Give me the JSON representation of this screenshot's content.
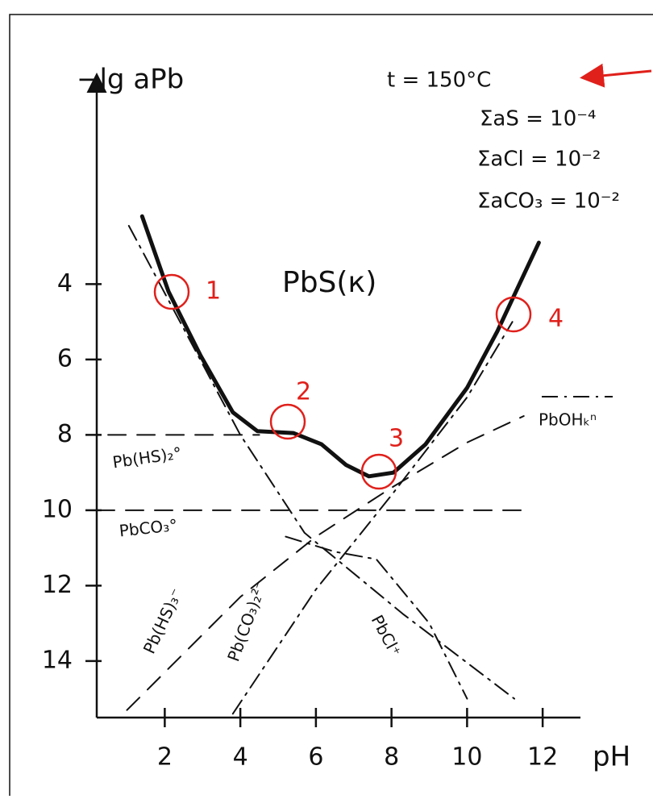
{
  "chart_data": {
    "type": "line",
    "y_label": "−lg aPb",
    "x_label": "pH",
    "region_label": "PbS(к)",
    "conditions": [
      "t = 150°C",
      "ΣaS = 10⁻⁴",
      "ΣaCl = 10⁻²",
      "ΣaCO₃ = 10⁻²"
    ],
    "markers": [
      "1",
      "2",
      "3",
      "4"
    ],
    "marker_color": "#e0201b",
    "xlim": [
      0.2,
      13
    ],
    "ylim": [
      -1.4,
      15.5
    ],
    "y_inverted": true,
    "xticks": [
      2,
      4,
      6,
      8,
      10,
      12
    ],
    "yticks": [
      4,
      6,
      8,
      10,
      12,
      14
    ],
    "grid": false,
    "series": [
      {
        "name": null,
        "color": "#111111",
        "style": "solid",
        "x": [
          1.4,
          2.1,
          2.95,
          3.8,
          4.45,
          5.4,
          6.15,
          6.8,
          7.4,
          8.05,
          8.9,
          10.0,
          10.8,
          11.9
        ],
        "values": [
          2.2,
          4.2,
          5.9,
          7.4,
          7.9,
          7.95,
          8.25,
          8.8,
          9.1,
          9.0,
          8.25,
          6.75,
          5.25,
          2.9
        ]
      },
      {
        "name": "Pb(HS)₂°",
        "color": "#111111",
        "style": "dashed",
        "x": [
          0.5,
          4.5
        ],
        "values": [
          8,
          8
        ]
      },
      {
        "name": "PbCO₃°",
        "color": "#111111",
        "style": "dashed",
        "x": [
          0.2,
          11.7
        ],
        "values": [
          10,
          10
        ]
      },
      {
        "name": "PbCl⁺",
        "color": "#111111",
        "style": "dashdot",
        "x": [
          1.05,
          4.0,
          5.7,
          8.3,
          11.25
        ],
        "values": [
          2.45,
          8.0,
          10.6,
          12.75,
          15.0
        ]
      },
      {
        "name": "Pb(HS)₃⁻",
        "color": "#111111",
        "style": "dashed",
        "x": [
          1.0,
          4.0,
          6.0,
          8.0,
          10.0,
          11.5
        ],
        "values": [
          15.3,
          12.3,
          10.7,
          9.4,
          8.2,
          7.5
        ]
      },
      {
        "name": "Pb(CO₃)₂²⁻",
        "color": "#111111",
        "style": "dashdot",
        "x": [
          3.8,
          6.0,
          8.0,
          10.0,
          11.2
        ],
        "values": [
          15.4,
          12.1,
          9.6,
          7.0,
          5.0
        ]
      },
      {
        "name": "PbOHₖⁿ",
        "color": "#111111",
        "style": "dashdot",
        "x": [
          5.2,
          6.5,
          7.6,
          9.0,
          10.0
        ],
        "values": [
          10.7,
          11.1,
          11.3,
          13.0,
          15.0
        ]
      }
    ]
  }
}
